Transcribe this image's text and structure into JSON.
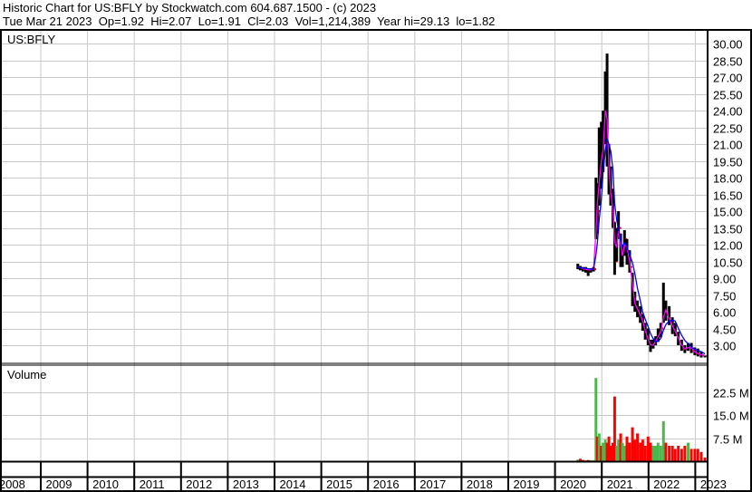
{
  "header": {
    "title": "Historic Chart for US:BFLY by Stockwatch.com 604.687.1500 - (c) 2023",
    "quote": "Tue Mar 21 2023  Op=1.92  Hi=2.07  Lo=1.91  Cl=2.03  Vol=1,214,389  Year hi=29.13  lo=1.82"
  },
  "chart_data": [
    {
      "type": "line",
      "panel": "price",
      "title": "US:BFLY",
      "style": "high-low bars with close dots and two moving averages",
      "ylim": [
        1.5,
        30.75
      ],
      "yticks": [
        "30.00",
        "28.50",
        "27.00",
        "25.50",
        "24.00",
        "22.50",
        "21.00",
        "19.50",
        "18.00",
        "16.50",
        "15.00",
        "13.50",
        "12.00",
        "10.50",
        "9.00",
        "7.50",
        "6.00",
        "4.50",
        "3.00"
      ],
      "grid": true,
      "colors": {
        "bars": "#000000",
        "close": "#ff0000",
        "ma_short": "#ff00ff",
        "ma_long": "#0000ff"
      },
      "points": [
        {
          "date": "2020-07-01",
          "hi": 10.3,
          "lo": 9.8,
          "close": 10.0,
          "vol": 0.5
        },
        {
          "date": "2020-07-20",
          "hi": 10.1,
          "lo": 9.7,
          "close": 9.9,
          "vol": 0.8
        },
        {
          "date": "2020-08-10",
          "hi": 10.0,
          "lo": 9.6,
          "close": 9.8,
          "vol": 0.4
        },
        {
          "date": "2020-09-01",
          "hi": 10.0,
          "lo": 9.5,
          "close": 9.8,
          "vol": 0.3
        },
        {
          "date": "2020-09-20",
          "hi": 9.9,
          "lo": 9.2,
          "close": 9.7,
          "vol": 0.4
        },
        {
          "date": "2020-10-10",
          "hi": 9.9,
          "lo": 9.5,
          "close": 9.8,
          "vol": 0.3
        },
        {
          "date": "2020-11-01",
          "hi": 10.0,
          "lo": 9.6,
          "close": 9.8,
          "vol": 0.3
        },
        {
          "date": "2020-11-20",
          "hi": 18.0,
          "lo": 12.5,
          "close": 16.5,
          "vol": 27
        },
        {
          "date": "2020-12-01",
          "hi": 17.5,
          "lo": 13.0,
          "close": 15.0,
          "vol": 8
        },
        {
          "date": "2020-12-15",
          "hi": 22.5,
          "lo": 15.5,
          "close": 20.0,
          "vol": 9
        },
        {
          "date": "2021-01-01",
          "hi": 23.0,
          "lo": 17.0,
          "close": 19.0,
          "vol": 5
        },
        {
          "date": "2021-01-15",
          "hi": 24.0,
          "lo": 18.5,
          "close": 22.0,
          "vol": 6
        },
        {
          "date": "2021-02-01",
          "hi": 27.5,
          "lo": 21.0,
          "close": 26.0,
          "vol": 7
        },
        {
          "date": "2021-02-15",
          "hi": 29.1,
          "lo": 19.0,
          "close": 20.5,
          "vol": 6
        },
        {
          "date": "2021-03-01",
          "hi": 21.0,
          "lo": 16.5,
          "close": 17.5,
          "vol": 8
        },
        {
          "date": "2021-03-15",
          "hi": 19.0,
          "lo": 15.5,
          "close": 16.0,
          "vol": 5
        },
        {
          "date": "2021-04-01",
          "hi": 17.0,
          "lo": 13.5,
          "close": 14.0,
          "vol": 6
        },
        {
          "date": "2021-04-15",
          "hi": 14.0,
          "lo": 9.3,
          "close": 10.5,
          "vol": 21
        },
        {
          "date": "2021-05-01",
          "hi": 13.5,
          "lo": 10.5,
          "close": 13.0,
          "vol": 5
        },
        {
          "date": "2021-05-15",
          "hi": 15.0,
          "lo": 12.5,
          "close": 13.5,
          "vol": 7
        },
        {
          "date": "2021-06-01",
          "hi": 13.0,
          "lo": 10.0,
          "close": 10.5,
          "vol": 9
        },
        {
          "date": "2021-06-15",
          "hi": 12.0,
          "lo": 10.0,
          "close": 11.5,
          "vol": 6
        },
        {
          "date": "2021-07-01",
          "hi": 13.3,
          "lo": 11.0,
          "close": 12.5,
          "vol": 5
        },
        {
          "date": "2021-07-20",
          "hi": 12.5,
          "lo": 10.2,
          "close": 11.0,
          "vol": 8
        },
        {
          "date": "2021-08-10",
          "hi": 11.5,
          "lo": 9.5,
          "close": 10.0,
          "vol": 6
        },
        {
          "date": "2021-09-01",
          "hi": 9.5,
          "lo": 6.5,
          "close": 7.0,
          "vol": 11
        },
        {
          "date": "2021-09-20",
          "hi": 7.8,
          "lo": 6.0,
          "close": 6.5,
          "vol": 7
        },
        {
          "date": "2021-10-10",
          "hi": 7.0,
          "lo": 5.5,
          "close": 6.0,
          "vol": 9
        },
        {
          "date": "2021-11-01",
          "hi": 6.5,
          "lo": 5.0,
          "close": 5.5,
          "vol": 6
        },
        {
          "date": "2021-11-20",
          "hi": 5.8,
          "lo": 4.3,
          "close": 4.8,
          "vol": 7
        },
        {
          "date": "2021-12-10",
          "hi": 5.0,
          "lo": 3.5,
          "close": 3.8,
          "vol": 5
        },
        {
          "date": "2022-01-01",
          "hi": 4.5,
          "lo": 3.0,
          "close": 3.3,
          "vol": 8
        },
        {
          "date": "2022-01-20",
          "hi": 3.5,
          "lo": 2.4,
          "close": 2.8,
          "vol": 6
        },
        {
          "date": "2022-02-10",
          "hi": 3.5,
          "lo": 2.7,
          "close": 3.2,
          "vol": 5
        },
        {
          "date": "2022-03-01",
          "hi": 3.8,
          "lo": 3.0,
          "close": 3.5,
          "vol": 5
        },
        {
          "date": "2022-03-20",
          "hi": 4.5,
          "lo": 3.3,
          "close": 4.0,
          "vol": 6
        },
        {
          "date": "2022-04-10",
          "hi": 5.0,
          "lo": 3.7,
          "close": 4.5,
          "vol": 5
        },
        {
          "date": "2022-05-01",
          "hi": 8.6,
          "lo": 5.0,
          "close": 6.5,
          "vol": 13
        },
        {
          "date": "2022-05-20",
          "hi": 7.0,
          "lo": 5.2,
          "close": 5.8,
          "vol": 6
        },
        {
          "date": "2022-06-15",
          "hi": 6.5,
          "lo": 4.8,
          "close": 5.0,
          "vol": 5
        },
        {
          "date": "2022-07-10",
          "hi": 5.5,
          "lo": 4.0,
          "close": 4.5,
          "vol": 5
        },
        {
          "date": "2022-08-01",
          "hi": 5.0,
          "lo": 3.8,
          "close": 4.0,
          "vol": 4
        },
        {
          "date": "2022-08-25",
          "hi": 4.2,
          "lo": 3.0,
          "close": 3.3,
          "vol": 5
        },
        {
          "date": "2022-09-20",
          "hi": 3.5,
          "lo": 2.5,
          "close": 2.7,
          "vol": 4
        },
        {
          "date": "2022-10-15",
          "hi": 3.0,
          "lo": 2.3,
          "close": 2.6,
          "vol": 5
        },
        {
          "date": "2022-11-10",
          "hi": 3.2,
          "lo": 2.5,
          "close": 3.0,
          "vol": 6
        },
        {
          "date": "2022-12-05",
          "hi": 3.2,
          "lo": 2.3,
          "close": 2.5,
          "vol": 4
        },
        {
          "date": "2023-01-01",
          "hi": 2.8,
          "lo": 2.1,
          "close": 2.3,
          "vol": 4
        },
        {
          "date": "2023-01-25",
          "hi": 2.7,
          "lo": 2.0,
          "close": 2.2,
          "vol": 4
        },
        {
          "date": "2023-02-20",
          "hi": 2.4,
          "lo": 1.9,
          "close": 2.1,
          "vol": 3
        },
        {
          "date": "2023-03-21",
          "hi": 2.07,
          "lo": 1.91,
          "close": 2.03,
          "vol": 1.214389
        }
      ]
    },
    {
      "type": "bar",
      "panel": "volume",
      "title": "Volume",
      "ylim": [
        0,
        30
      ],
      "yticks": [
        "22.5 M",
        "15.0 M",
        "7.5 M"
      ],
      "ytick_values": [
        22.5,
        15,
        7.5
      ],
      "colors": {
        "up": "#4cb84c",
        "down": "#ff0000"
      },
      "grid": true
    }
  ],
  "xaxis": {
    "labels": [
      "2008",
      "2009",
      "2010",
      "2011",
      "2012",
      "2013",
      "2014",
      "2015",
      "2016",
      "2017",
      "2018",
      "2019",
      "2020",
      "2021",
      "2022",
      "2023"
    ]
  }
}
